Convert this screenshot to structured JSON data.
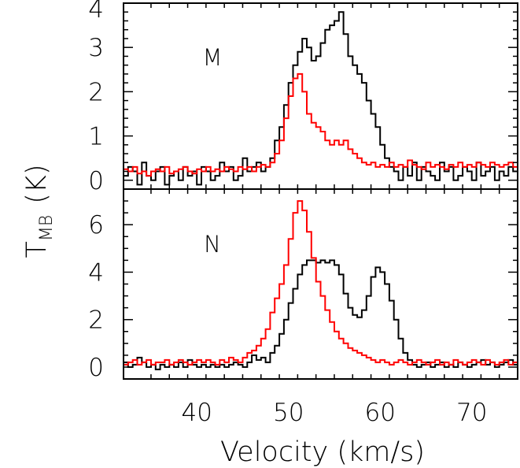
{
  "chart_data": [
    {
      "type": "line",
      "step": true,
      "panel_label": "M",
      "xlim": [
        32,
        75
      ],
      "ylim": [
        -0.2,
        4
      ],
      "yticks": [
        0,
        1,
        2,
        3,
        4
      ],
      "ylabel": "T_MB (K)",
      "ylabel_main": "T",
      "ylabel_sub": "MB",
      "ylabel_unit": "(K)",
      "series": [
        {
          "color": "#000000",
          "x": [
            32.25,
            32.75,
            33.25,
            33.75,
            34.25,
            34.75,
            35.25,
            35.75,
            36.25,
            36.75,
            37.25,
            37.75,
            38.25,
            38.75,
            39.25,
            39.75,
            40.25,
            40.75,
            41.25,
            41.75,
            42.25,
            42.75,
            43.25,
            43.75,
            44.25,
            44.75,
            45.25,
            45.75,
            46.25,
            46.75,
            47.25,
            47.75,
            48.25,
            48.75,
            49.25,
            49.75,
            50.25,
            50.75,
            51.25,
            51.75,
            52.25,
            52.75,
            53.25,
            53.75,
            54.25,
            54.75,
            55.25,
            55.75,
            56.25,
            56.75,
            57.25,
            57.75,
            58.25,
            58.75,
            59.25,
            59.75,
            60.25,
            60.75,
            61.25,
            61.75,
            62.25,
            62.75,
            63.25,
            63.75,
            64.25,
            64.75,
            65.25,
            65.75,
            66.25,
            66.75,
            67.25,
            67.75,
            68.25,
            68.75,
            69.25,
            69.75,
            70.25,
            70.75,
            71.25,
            71.75,
            72.25,
            72.75,
            73.25,
            73.75,
            74.25,
            74.75
          ],
          "y": [
            0.1,
            0.3,
            0.2,
            -0.1,
            0.4,
            0.1,
            0.0,
            0.2,
            0.3,
            -0.1,
            0.1,
            0.2,
            0.0,
            0.3,
            0.1,
            0.2,
            -0.1,
            0.3,
            0.2,
            0.0,
            0.1,
            0.4,
            0.2,
            0.3,
            0.0,
            0.1,
            0.5,
            0.2,
            0.3,
            0.4,
            0.2,
            0.3,
            0.5,
            0.9,
            1.2,
            1.7,
            2.2,
            2.6,
            2.9,
            3.2,
            3.0,
            2.7,
            2.8,
            3.1,
            3.4,
            3.5,
            3.6,
            3.8,
            3.3,
            2.8,
            2.6,
            2.4,
            2.2,
            1.8,
            1.5,
            1.2,
            0.8,
            0.5,
            0.3,
            0.2,
            0.0,
            0.3,
            0.1,
            0.4,
            0.0,
            0.3,
            0.2,
            0.1,
            0.0,
            0.4,
            0.2,
            0.3,
            0.0,
            0.1,
            0.3,
            0.2,
            0.0,
            0.4,
            0.1,
            0.2,
            0.3,
            0.0,
            0.2,
            0.1,
            0.3,
            0.2
          ]
        },
        {
          "color": "#ff0000",
          "x": [
            32.25,
            32.75,
            33.25,
            33.75,
            34.25,
            34.75,
            35.25,
            35.75,
            36.25,
            36.75,
            37.25,
            37.75,
            38.25,
            38.75,
            39.25,
            39.75,
            40.25,
            40.75,
            41.25,
            41.75,
            42.25,
            42.75,
            43.25,
            43.75,
            44.25,
            44.75,
            45.25,
            45.75,
            46.25,
            46.75,
            47.25,
            47.75,
            48.25,
            48.75,
            49.25,
            49.75,
            50.25,
            50.75,
            51.25,
            51.75,
            52.25,
            52.75,
            53.25,
            53.75,
            54.25,
            54.75,
            55.25,
            55.75,
            56.25,
            56.75,
            57.25,
            57.75,
            58.25,
            58.75,
            59.25,
            59.75,
            60.25,
            60.75,
            61.25,
            61.75,
            62.25,
            62.75,
            63.25,
            63.75,
            64.25,
            64.75,
            65.25,
            65.75,
            66.25,
            66.75,
            67.25,
            67.75,
            68.25,
            68.75,
            69.25,
            69.75,
            70.25,
            70.75,
            71.25,
            71.75,
            72.25,
            72.75,
            73.25,
            73.75,
            74.25,
            74.75
          ],
          "y": [
            0.25,
            0.2,
            0.3,
            0.15,
            0.2,
            0.1,
            0.2,
            0.25,
            0.2,
            0.3,
            0.15,
            0.2,
            0.25,
            0.3,
            0.2,
            0.15,
            0.25,
            0.2,
            0.3,
            0.2,
            0.25,
            0.2,
            0.3,
            0.25,
            0.2,
            0.3,
            0.25,
            0.3,
            0.2,
            0.3,
            0.35,
            0.3,
            0.4,
            0.6,
            0.9,
            1.4,
            1.9,
            2.3,
            2.4,
            2.0,
            1.5,
            1.3,
            1.2,
            1.1,
            0.9,
            0.8,
            0.9,
            0.8,
            0.9,
            0.7,
            0.6,
            0.5,
            0.4,
            0.35,
            0.4,
            0.3,
            0.35,
            0.3,
            0.4,
            0.3,
            0.35,
            0.3,
            0.45,
            0.35,
            0.3,
            0.25,
            0.4,
            0.3,
            0.35,
            0.3,
            0.25,
            0.35,
            0.3,
            0.4,
            0.3,
            0.35,
            0.3,
            0.4,
            0.35,
            0.3,
            0.4,
            0.35,
            0.3,
            0.35,
            0.4,
            0.3
          ]
        }
      ]
    },
    {
      "type": "line",
      "step": true,
      "panel_label": "N",
      "xlim": [
        32,
        75
      ],
      "ylim": [
        -0.5,
        7.5
      ],
      "yticks": [
        0,
        2,
        4,
        6
      ],
      "xticks": [
        40,
        50,
        60,
        70
      ],
      "xlabel": "Velocity (km/s)",
      "series": [
        {
          "color": "#000000",
          "x": [
            32.25,
            32.75,
            33.25,
            33.75,
            34.25,
            34.75,
            35.25,
            35.75,
            36.25,
            36.75,
            37.25,
            37.75,
            38.25,
            38.75,
            39.25,
            39.75,
            40.25,
            40.75,
            41.25,
            41.75,
            42.25,
            42.75,
            43.25,
            43.75,
            44.25,
            44.75,
            45.25,
            45.75,
            46.25,
            46.75,
            47.25,
            47.75,
            48.25,
            48.75,
            49.25,
            49.75,
            50.25,
            50.75,
            51.25,
            51.75,
            52.25,
            52.75,
            53.25,
            53.75,
            54.25,
            54.75,
            55.25,
            55.75,
            56.25,
            56.75,
            57.25,
            57.75,
            58.25,
            58.75,
            59.25,
            59.75,
            60.25,
            60.75,
            61.25,
            61.75,
            62.25,
            62.75,
            63.25,
            63.75,
            64.25,
            64.75,
            65.25,
            65.75,
            66.25,
            66.75,
            67.25,
            67.75,
            68.25,
            68.75,
            69.25,
            69.75,
            70.25,
            70.75,
            71.25,
            71.75,
            72.25,
            72.75,
            73.25,
            73.75,
            74.25,
            74.75
          ],
          "y": [
            0.2,
            0.0,
            0.1,
            0.4,
            0.2,
            0.0,
            0.1,
            -0.1,
            0.1,
            0.0,
            0.1,
            0.0,
            0.2,
            0.0,
            0.3,
            0.1,
            0.0,
            0.1,
            0.0,
            0.1,
            0.0,
            0.1,
            0.0,
            0.1,
            0.2,
            0.1,
            0.0,
            0.2,
            0.5,
            0.3,
            0.4,
            0.2,
            0.6,
            0.9,
            1.4,
            2.0,
            2.7,
            3.3,
            3.9,
            4.3,
            4.5,
            4.5,
            4.4,
            4.5,
            4.4,
            4.5,
            4.3,
            3.9,
            3.1,
            2.5,
            2.2,
            2.1,
            2.4,
            3.0,
            3.8,
            4.2,
            4.0,
            3.5,
            2.8,
            2.0,
            1.2,
            0.6,
            0.3,
            0.1,
            0.0,
            0.1,
            0.2,
            0.0,
            0.1,
            0.2,
            0.0,
            0.1,
            0.0,
            0.2,
            0.1,
            0.0,
            0.1,
            0.2,
            0.3,
            0.1,
            0.2,
            0.0,
            0.1,
            0.2,
            0.3,
            0.1
          ]
        },
        {
          "color": "#ff0000",
          "x": [
            32.25,
            32.75,
            33.25,
            33.75,
            34.25,
            34.75,
            35.25,
            35.75,
            36.25,
            36.75,
            37.25,
            37.75,
            38.25,
            38.75,
            39.25,
            39.75,
            40.25,
            40.75,
            41.25,
            41.75,
            42.25,
            42.75,
            43.25,
            43.75,
            44.25,
            44.75,
            45.25,
            45.75,
            46.25,
            46.75,
            47.25,
            47.75,
            48.25,
            48.75,
            49.25,
            49.75,
            50.25,
            50.75,
            51.25,
            51.75,
            52.25,
            52.75,
            53.25,
            53.75,
            54.25,
            54.75,
            55.25,
            55.75,
            56.25,
            56.75,
            57.25,
            57.75,
            58.25,
            58.75,
            59.25,
            59.75,
            60.25,
            60.75,
            61.25,
            61.75,
            62.25,
            62.75,
            63.25,
            63.75,
            64.25,
            64.75,
            65.25,
            65.75,
            66.25,
            66.75,
            67.25,
            67.75,
            68.25,
            68.75,
            69.25,
            69.75,
            70.25,
            70.75,
            71.25,
            71.75,
            72.25,
            72.75,
            73.25,
            73.75,
            74.25,
            74.75
          ],
          "y": [
            0.1,
            0.2,
            0.3,
            0.1,
            0.2,
            0.3,
            0.1,
            0.2,
            0.2,
            0.3,
            0.1,
            0.2,
            0.3,
            0.2,
            0.1,
            0.2,
            0.3,
            0.2,
            0.3,
            0.2,
            0.1,
            0.3,
            0.2,
            0.4,
            0.3,
            0.2,
            0.4,
            0.6,
            0.7,
            0.9,
            1.2,
            1.6,
            2.3,
            2.9,
            3.5,
            4.3,
            5.4,
            6.5,
            7.0,
            6.6,
            5.7,
            4.6,
            3.6,
            3.0,
            2.4,
            1.9,
            1.5,
            1.2,
            1.0,
            0.8,
            0.7,
            0.6,
            0.5,
            0.4,
            0.3,
            0.2,
            0.3,
            0.2,
            0.1,
            0.2,
            0.3,
            0.2,
            0.1,
            0.2,
            0.3,
            0.2,
            0.1,
            0.2,
            0.3,
            0.1,
            0.2,
            0.1,
            0.3,
            0.2,
            0.1,
            0.2,
            0.3,
            0.2,
            0.1,
            0.3,
            0.2,
            0.1,
            0.2,
            0.3,
            0.1,
            0.2
          ]
        }
      ]
    }
  ]
}
